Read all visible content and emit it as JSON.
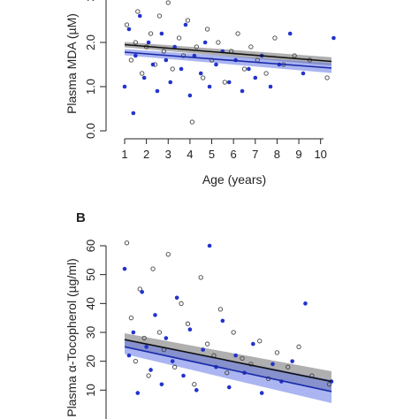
{
  "chart_data": [
    {
      "type": "scatter",
      "panel": "",
      "xlabel": "Age (years)",
      "ylabel": "Plasma MDA (µM)",
      "ylim": [
        0,
        3
      ],
      "xlim": [
        1,
        10.5
      ],
      "xticks": [
        1,
        2,
        3,
        4,
        5,
        6,
        7,
        8,
        9,
        10
      ],
      "yticks": [
        0.0,
        1.0,
        2.0,
        3.0
      ],
      "ytick_labels": [
        "0.0",
        "1.0",
        "2.0",
        "3"
      ],
      "series": [
        {
          "marker": "open-circle",
          "color": "#555555",
          "fit": {
            "x": [
              1,
              10.5
            ],
            "y": [
              1.95,
              1.57
            ],
            "ci": 0.06
          },
          "x": [
            1.1,
            1.3,
            1.5,
            1.6,
            1.8,
            2.0,
            2.2,
            2.4,
            2.6,
            2.8,
            3.0,
            3.2,
            3.5,
            3.7,
            3.9,
            4.1,
            4.3,
            4.6,
            4.8,
            5.0,
            5.3,
            5.6,
            5.9,
            6.2,
            6.5,
            6.8,
            7.1,
            7.5,
            7.9,
            8.3,
            8.8,
            9.5,
            10.3
          ],
          "y": [
            2.4,
            1.6,
            2.0,
            2.7,
            1.3,
            1.9,
            2.2,
            1.5,
            2.6,
            1.8,
            2.9,
            1.4,
            2.1,
            1.7,
            2.5,
            0.2,
            1.9,
            1.2,
            2.3,
            1.6,
            2.0,
            1.1,
            1.8,
            2.2,
            1.4,
            1.9,
            1.6,
            1.3,
            2.1,
            1.5,
            1.7,
            1.6,
            1.2
          ]
        },
        {
          "marker": "filled-circle",
          "color": "#2233cc",
          "fit": {
            "x": [
              1,
              10.5
            ],
            "y": [
              1.78,
              1.42
            ],
            "ci": 0.07
          },
          "x": [
            1.0,
            1.2,
            1.4,
            1.5,
            1.7,
            1.9,
            2.1,
            2.3,
            2.5,
            2.7,
            2.9,
            3.1,
            3.3,
            3.6,
            3.8,
            4.0,
            4.2,
            4.5,
            4.7,
            4.9,
            5.2,
            5.5,
            5.8,
            6.1,
            6.4,
            6.7,
            7.0,
            7.3,
            7.7,
            8.1,
            8.6,
            9.2,
            10.6
          ],
          "y": [
            1.0,
            2.3,
            0.4,
            1.7,
            2.6,
            1.2,
            2.0,
            1.5,
            0.9,
            2.2,
            1.6,
            1.1,
            1.9,
            1.4,
            2.4,
            0.8,
            1.7,
            1.3,
            2.0,
            1.0,
            1.5,
            1.8,
            1.1,
            1.6,
            0.9,
            1.4,
            1.2,
            1.7,
            1.0,
            1.5,
            2.2,
            1.3,
            2.1
          ]
        }
      ]
    },
    {
      "type": "scatter",
      "panel": "B",
      "xlabel": "",
      "ylabel": "Plasma α-Tocopherol (µg/ml)",
      "ylim": [
        0,
        60
      ],
      "xlim": [
        1,
        10.5
      ],
      "yticks": [
        10,
        20,
        30,
        40,
        50,
        60
      ],
      "series": [
        {
          "marker": "open-circle",
          "color": "#555555",
          "fit": {
            "x": [
              1,
              10.5
            ],
            "y": [
              27.5,
              13.0
            ],
            "ci": 2.2
          },
          "x": [
            1.1,
            1.3,
            1.5,
            1.7,
            1.9,
            2.1,
            2.3,
            2.6,
            2.8,
            3.0,
            3.3,
            3.6,
            3.9,
            4.2,
            4.5,
            4.8,
            5.1,
            5.4,
            5.7,
            6.0,
            6.4,
            6.8,
            7.2,
            7.6,
            8.0,
            8.5,
            9.0,
            9.6,
            10.4
          ],
          "y": [
            61,
            35,
            20,
            45,
            28,
            15,
            52,
            30,
            24,
            57,
            18,
            40,
            33,
            12,
            49,
            26,
            22,
            38,
            16,
            30,
            21,
            19,
            27,
            14,
            23,
            18,
            25,
            15,
            12
          ]
        },
        {
          "marker": "filled-circle",
          "color": "#2233cc",
          "fit": {
            "x": [
              1,
              10.5
            ],
            "y": [
              25.0,
              9.5
            ],
            "ci": 2.5
          },
          "x": [
            1.0,
            1.2,
            1.4,
            1.6,
            1.8,
            2.0,
            2.2,
            2.4,
            2.7,
            2.9,
            3.2,
            3.4,
            3.7,
            4.0,
            4.3,
            4.6,
            4.9,
            5.2,
            5.5,
            5.8,
            6.1,
            6.5,
            6.9,
            7.3,
            7.8,
            8.2,
            8.7,
            9.3,
            10.5
          ],
          "y": [
            52,
            22,
            30,
            9,
            44,
            25,
            17,
            36,
            12,
            28,
            20,
            42,
            15,
            31,
            10,
            24,
            60,
            18,
            34,
            11,
            22,
            16,
            26,
            9,
            19,
            13,
            20,
            40,
            13
          ]
        }
      ]
    }
  ]
}
